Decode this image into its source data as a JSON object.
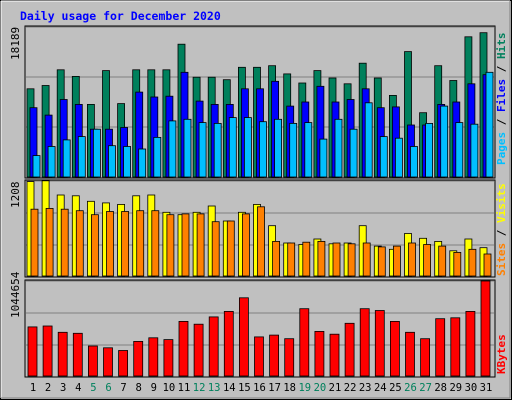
{
  "chart_data": {
    "type": "bar",
    "title": "Daily usage for December 2020",
    "days": [
      "1",
      "2",
      "3",
      "4",
      "5",
      "6",
      "7",
      "8",
      "9",
      "10",
      "11",
      "12",
      "13",
      "14",
      "15",
      "16",
      "17",
      "18",
      "19",
      "20",
      "21",
      "22",
      "23",
      "24",
      "25",
      "26",
      "27",
      "28",
      "29",
      "30",
      "31"
    ],
    "weekend_days": [
      "5",
      "6",
      "12",
      "13",
      "19",
      "20",
      "26",
      "27"
    ],
    "top_panel": {
      "ymax": 18189,
      "ymax_label": "18189",
      "side_label": [
        "Pages",
        "Files",
        "Hits"
      ],
      "series": [
        {
          "name": "Hits",
          "color": "#00805c",
          "values": [
            10700,
            11100,
            13000,
            12200,
            8800,
            12900,
            8900,
            13000,
            13000,
            13000,
            16100,
            12100,
            12100,
            11800,
            13300,
            13300,
            13500,
            12500,
            11400,
            12900,
            12000,
            11300,
            13800,
            12000,
            9900,
            15200,
            7800,
            13500,
            11700,
            17000,
            17500
          ]
        },
        {
          "name": "Files",
          "color": "#0000ff",
          "values": [
            8400,
            7500,
            9400,
            8800,
            5800,
            5800,
            6000,
            10300,
            9700,
            9800,
            12700,
            9200,
            8800,
            8800,
            10700,
            10700,
            11600,
            8600,
            9100,
            11000,
            9100,
            9400,
            10700,
            8400,
            8500,
            6300,
            6300,
            8800,
            9100,
            11300,
            12400
          ]
        },
        {
          "name": "Pages",
          "color": "#00bfff",
          "values": [
            2600,
            3700,
            4500,
            4900,
            5800,
            3800,
            3700,
            3400,
            4800,
            6800,
            7000,
            6600,
            6500,
            7200,
            7200,
            6700,
            7000,
            6500,
            6600,
            4600,
            7000,
            5800,
            9000,
            4900,
            4700,
            3700,
            6500,
            8600,
            6600,
            6400,
            12700
          ]
        }
      ]
    },
    "middle_panel": {
      "ymax": 1208,
      "ymax_label": "1208",
      "side_label": [
        "Sites",
        "Visits"
      ],
      "series": [
        {
          "name": "Visits",
          "color": "#ffff00",
          "values": [
            1200,
            1210,
            1030,
            1020,
            950,
            930,
            910,
            1020,
            1030,
            810,
            780,
            810,
            890,
            700,
            810,
            910,
            640,
            420,
            400,
            470,
            410,
            420,
            640,
            380,
            340,
            540,
            480,
            440,
            320,
            470,
            360
          ]
        },
        {
          "name": "Sites",
          "color": "#ff8000",
          "values": [
            850,
            860,
            850,
            830,
            780,
            820,
            820,
            830,
            830,
            780,
            790,
            790,
            690,
            700,
            790,
            880,
            440,
            420,
            430,
            440,
            420,
            410,
            420,
            370,
            380,
            420,
            400,
            380,
            300,
            340,
            280
          ]
        }
      ]
    },
    "bottom_panel": {
      "ymax": 1044654,
      "ymax_label": "1044654",
      "side_label": [
        "KBytes"
      ],
      "series": [
        {
          "name": "KBytes",
          "color": "#ff0000",
          "values": [
            540000,
            550000,
            480000,
            470000,
            330000,
            310000,
            280000,
            380000,
            420000,
            400000,
            600000,
            570000,
            650000,
            710000,
            860000,
            430000,
            450000,
            410000,
            740000,
            490000,
            460000,
            580000,
            740000,
            720000,
            600000,
            480000,
            410000,
            630000,
            640000,
            710000,
            1044654
          ]
        }
      ]
    }
  },
  "colors": {
    "background": "#c0c0c0",
    "title": "#0000ff",
    "weekday_label": "#000000",
    "weekend_label": "#00805c"
  }
}
